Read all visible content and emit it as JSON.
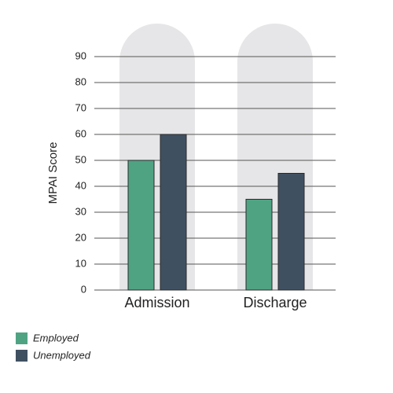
{
  "chart_data": {
    "type": "bar",
    "y_label": "MPAI Score",
    "categories": [
      "Admission",
      "Discharge"
    ],
    "series": [
      {
        "name": "Employed",
        "color": "#4fa383",
        "values": [
          50,
          35
        ]
      },
      {
        "name": "Unemployed",
        "color": "#3f5061",
        "values": [
          60,
          45
        ]
      }
    ],
    "ylim": [
      0,
      90
    ],
    "yticks": [
      0,
      10,
      20,
      30,
      40,
      50,
      60,
      70,
      80,
      90
    ],
    "grid": true,
    "legend": "bottom-left"
  }
}
